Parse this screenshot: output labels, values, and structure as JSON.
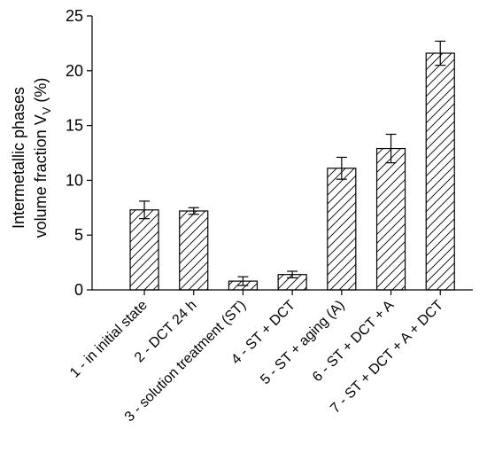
{
  "chart_data": {
    "type": "bar",
    "categories": [
      "1 - in initial state",
      "2 - DCT 24 h",
      "3 - solution treatment (ST)",
      "4 - ST + DCT",
      "5 - ST + aging (A)",
      "6 - ST + DCT + A",
      "7 - ST + DCT + A + DCT"
    ],
    "values": [
      7.3,
      7.2,
      0.8,
      1.4,
      11.1,
      12.9,
      21.6
    ],
    "errors": [
      0.8,
      0.3,
      0.4,
      0.3,
      1.0,
      1.3,
      1.1
    ],
    "ylabel_line1": "Intermetallic phases",
    "ylabel_line2": "volume fraction V",
    "ylabel_sub": "V",
    "ylabel_unit": " (%)",
    "ylim": [
      0,
      25
    ],
    "yticks": [
      0,
      5,
      10,
      15,
      20,
      25
    ],
    "grid": false,
    "pattern": "diagonal-hatch"
  }
}
